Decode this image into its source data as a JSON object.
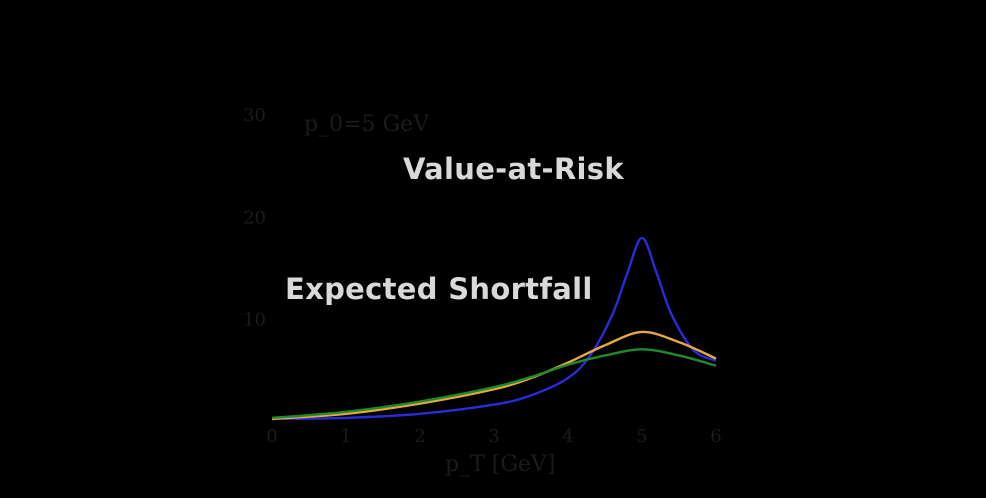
{
  "overlay_labels": {
    "value_at_risk": "Value-at-Risk",
    "expected_shortfall": "Expected Shortfall"
  },
  "chart_data": {
    "type": "line",
    "annotation": "p_0=5 GeV",
    "xlabel": "p_T [GeV]",
    "ylabel": "",
    "xlim": [
      0,
      6
    ],
    "ylim": [
      0,
      30
    ],
    "x_ticks": [
      "0",
      "1",
      "2",
      "3",
      "4",
      "5",
      "6"
    ],
    "y_ticks": [
      "10",
      "20",
      "30"
    ],
    "grid": false,
    "background": "#000000",
    "series": [
      {
        "color": "#2a2bd8",
        "x": [
          0,
          1,
          2,
          3,
          3.5,
          4,
          4.3,
          4.6,
          4.8,
          5,
          5.2,
          5.4,
          5.7,
          6
        ],
        "y": [
          0.3,
          0.4,
          0.8,
          1.7,
          2.6,
          4.3,
          6.5,
          10.5,
          14.5,
          18,
          14.5,
          10.5,
          7,
          6
        ]
      },
      {
        "color": "#e8a840",
        "x": [
          0,
          1,
          2,
          3,
          3.5,
          4,
          4.5,
          5,
          5.5,
          6
        ],
        "y": [
          0.3,
          0.8,
          1.8,
          3.2,
          4.3,
          5.8,
          7.5,
          8.8,
          7.8,
          6.2
        ]
      },
      {
        "color": "#1f8a2a",
        "x": [
          0,
          1,
          2,
          3,
          3.5,
          4,
          4.5,
          5,
          5.5,
          6
        ],
        "y": [
          0.4,
          1.0,
          2.0,
          3.4,
          4.4,
          5.6,
          6.5,
          7.1,
          6.5,
          5.5
        ]
      }
    ]
  }
}
